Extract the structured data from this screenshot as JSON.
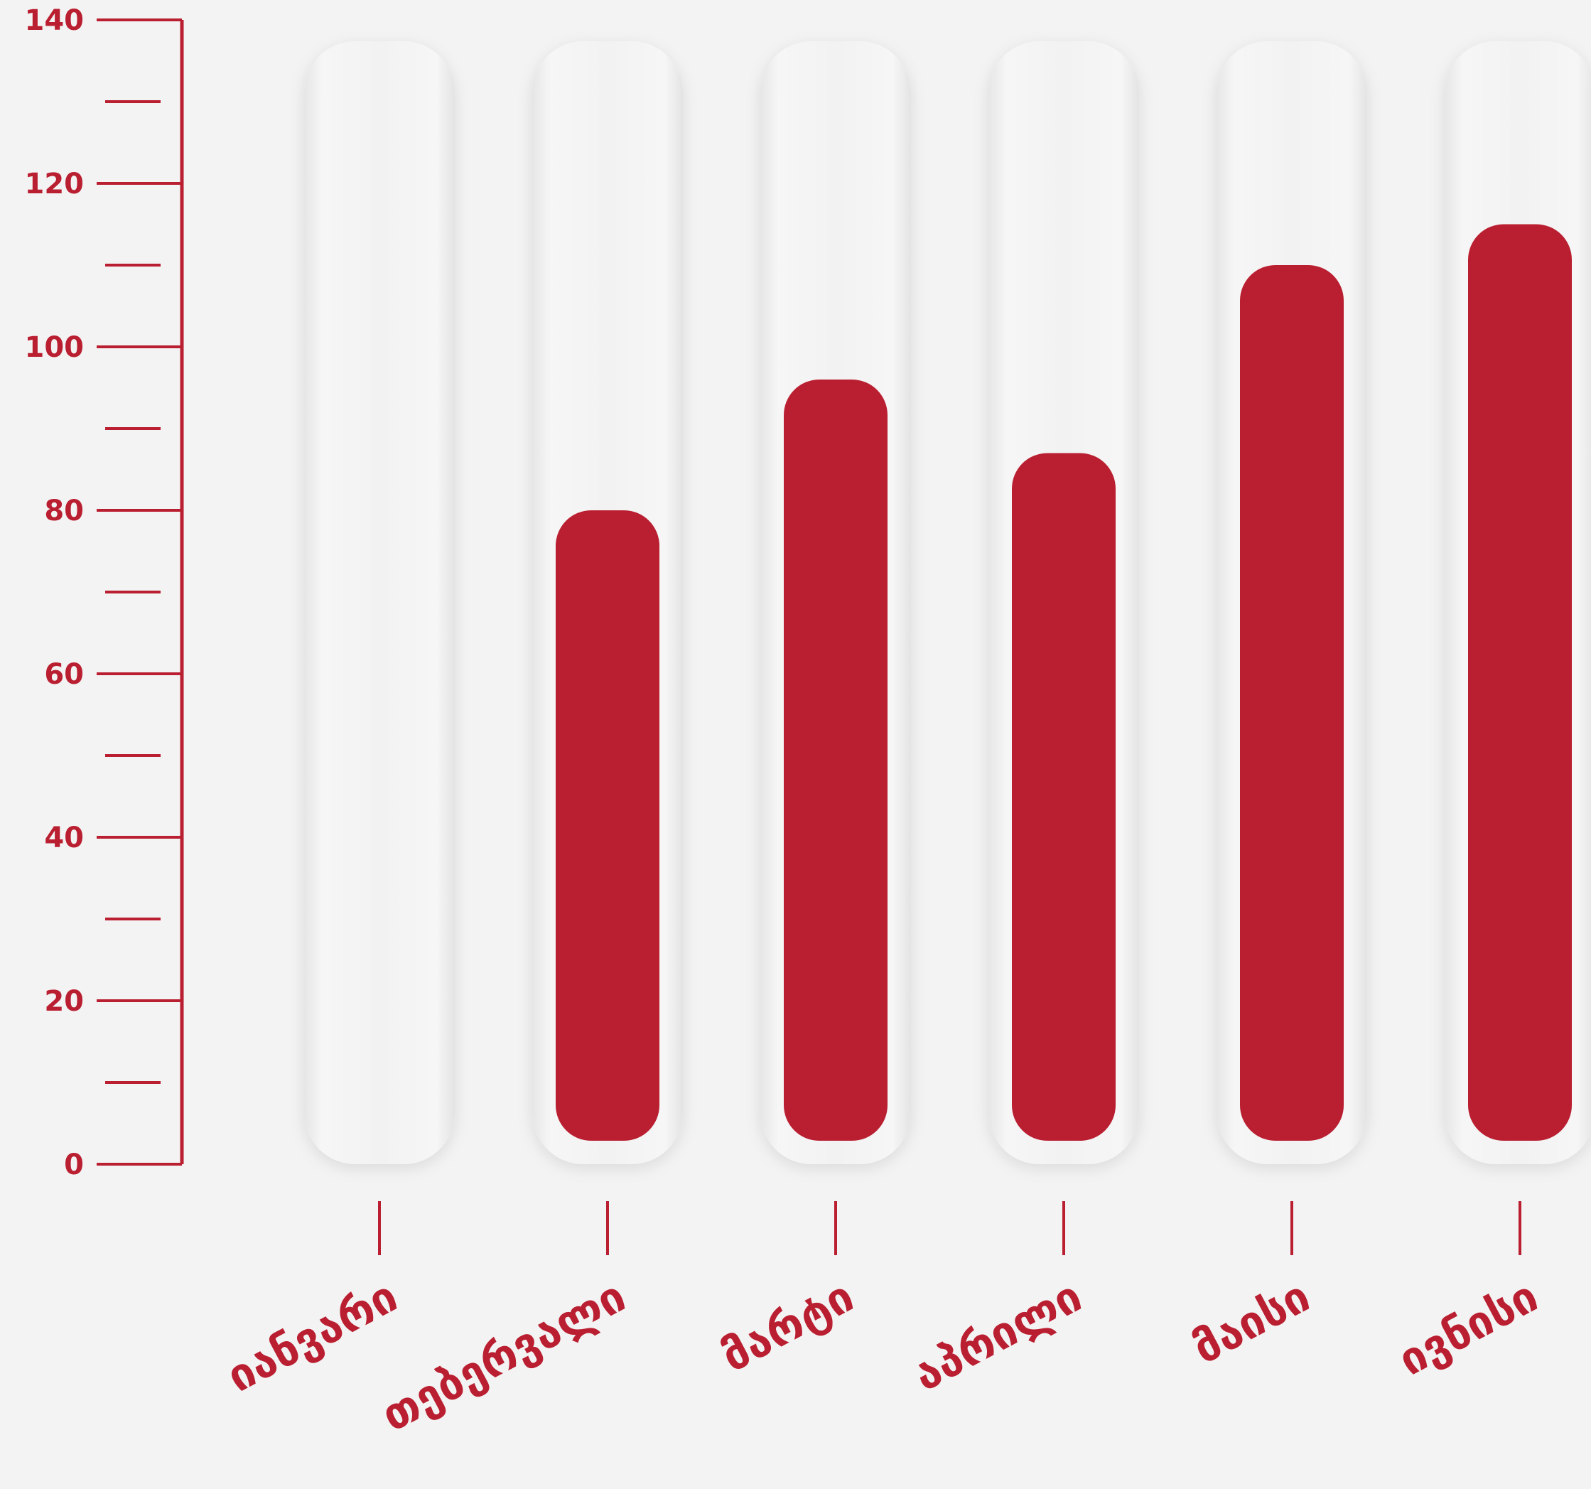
{
  "chart_data": {
    "type": "bar",
    "categories": [
      "იანვარი",
      "თებერვალი",
      "მარტი",
      "აპრილი",
      "მაისი",
      "ივნისი"
    ],
    "values": [
      0,
      80,
      96,
      87,
      110,
      115
    ],
    "ylim": [
      0,
      140
    ],
    "y_ticks": [
      "0",
      "20",
      "40",
      "60",
      "80",
      "100",
      "120",
      "140"
    ],
    "y_tick_step": 20,
    "minor_tick_step": 10,
    "grid": false,
    "legend": "none"
  },
  "colors": {
    "accent": "#ba1f31",
    "background": "#f3f3f3",
    "track": "#f1f1f1"
  }
}
